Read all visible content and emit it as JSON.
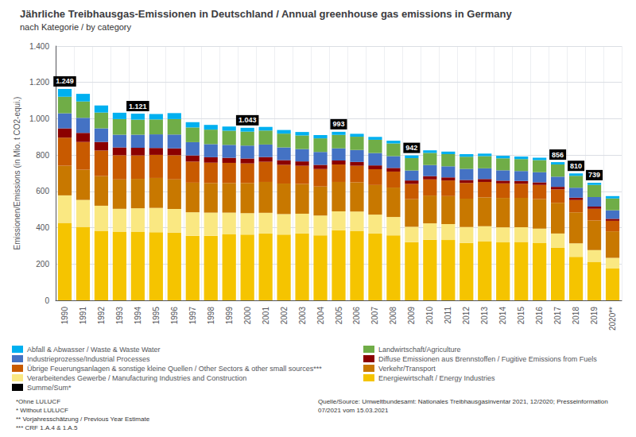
{
  "chart_data": {
    "type": "bar",
    "title": "Jährliche Treibhausgas-Emissionen in Deutschland / Annual greenhouse gas emissions in Germany",
    "subtitle": "nach Kategorie / by category",
    "y_label": "Emissionen/Emissions (in Mio. t CO2-equi.)",
    "categories": [
      "1990",
      "1991",
      "1992",
      "1993",
      "1994",
      "1995",
      "1996",
      "1997",
      "1998",
      "1999",
      "2000",
      "2001",
      "2002",
      "2003",
      "2004",
      "2005",
      "2006",
      "2007",
      "2008",
      "2009",
      "2010",
      "2011",
      "2012",
      "2013",
      "2014",
      "2015",
      "2016",
      "2017",
      "2018",
      "2019",
      "2020**"
    ],
    "stacked": true,
    "series": [
      {
        "name": "Energiewirtschaft / Energy Industries",
        "color": "#F5C400",
        "values": [
          427,
          405,
          383,
          378,
          378,
          375,
          373,
          356,
          356,
          363,
          362,
          368,
          362,
          368,
          358,
          386,
          383,
          368,
          358,
          321,
          334,
          332,
          316,
          324,
          319,
          322,
          315,
          289,
          240,
          212,
          175
        ]
      },
      {
        "name": "Verarbeitendes Gewerbe / Manufacturing Industries and Construction",
        "color": "#FAE882",
        "values": [
          151,
          148,
          138,
          126,
          129,
          134,
          130,
          129,
          127,
          120,
          118,
          114,
          113,
          109,
          109,
          104,
          106,
          104,
          101,
          84,
          90,
          88,
          88,
          84,
          83,
          80,
          80,
          79,
          74,
          65,
          59
        ]
      },
      {
        "name": "Verkehr/Transport",
        "color": "#C87800",
        "values": [
          163,
          166,
          163,
          162,
          162,
          165,
          163,
          163,
          163,
          163,
          166,
          170,
          168,
          164,
          160,
          162,
          161,
          163,
          162,
          152,
          153,
          154,
          156,
          159,
          162,
          162,
          163,
          169,
          170,
          163,
          146
        ]
      },
      {
        "name": "Übrige Feuerungsanlagen & sonstige kleine Quellen / Other Sectors & other small sources***",
        "color": "#C85A00",
        "values": [
          155,
          153,
          141,
          133,
          129,
          127,
          133,
          116,
          112,
          111,
          108,
          111,
          103,
          100,
          96,
          96,
          91,
          87,
          88,
          84,
          89,
          86,
          86,
          85,
          80,
          78,
          78,
          74,
          68,
          64,
          58
        ]
      },
      {
        "name": "Diffuse Emissionen aus Brennstoffen / Fugitive Emissions from Fuels",
        "color": "#8B0000",
        "values": [
          51,
          50,
          47,
          43,
          42,
          38,
          38,
          34,
          30,
          28,
          27,
          26,
          26,
          24,
          23,
          22,
          21,
          21,
          20,
          19,
          18,
          17,
          17,
          16,
          15,
          15,
          14,
          14,
          13,
          12,
          11
        ]
      },
      {
        "name": "Industrieprozesse/Industrial Processes",
        "color": "#4472C4",
        "values": [
          83,
          83,
          75,
          70,
          72,
          75,
          76,
          73,
          72,
          71,
          71,
          69,
          70,
          68,
          71,
          67,
          66,
          68,
          65,
          55,
          61,
          61,
          61,
          59,
          57,
          55,
          55,
          56,
          55,
          53,
          47
        ]
      },
      {
        "name": "Landwirtschaft/Agriculture",
        "color": "#70AD47",
        "values": [
          91,
          90,
          87,
          86,
          83,
          82,
          85,
          81,
          80,
          78,
          77,
          77,
          76,
          75,
          75,
          74,
          73,
          73,
          70,
          68,
          67,
          67,
          67,
          67,
          66,
          66,
          67,
          67,
          66,
          66,
          65
        ]
      },
      {
        "name": "Abfall & Abwasser / Waste & Waste Water",
        "color": "#00B0F0",
        "values": [
          43,
          42,
          39,
          35,
          33,
          30,
          33,
          29,
          26,
          23,
          21,
          20,
          20,
          19,
          18,
          17,
          16,
          16,
          15,
          15,
          14,
          14,
          14,
          14,
          14,
          14,
          13,
          13,
          13,
          13,
          13
        ]
      }
    ],
    "ylim": [
      0,
      1400
    ],
    "yticks": [
      0,
      200,
      400,
      600,
      800,
      {
        "value": 1000,
        "label": "1.000"
      },
      {
        "value": 1200,
        "label": "1.200"
      },
      {
        "value": 1400,
        "label": "1.400"
      }
    ],
    "grid": true,
    "legend": "bottom",
    "legend_columns": [
      [
        "Abfall & Abwasser / Waste & Waste Water",
        "Industrieprozesse/Industrial Processes",
        "Übrige Feuerungsanlagen & sonstige kleine Quellen / Other Sectors & other small sources***",
        "Verarbeitendes Gewerbe / Manufacturing Industries and Construction",
        "Summe/Sum*"
      ],
      [
        "Landwirtschaft/Agriculture",
        "Diffuse Emissionen aus Brennstoffen / Fugitive Emissions from Fuels",
        "Verkehr/Transport",
        "Energiewirtschaft / Energy Industries"
      ]
    ],
    "annotations": {
      "name": "Summe/Sum*",
      "color": "#000000",
      "items": [
        {
          "x": "1990",
          "text": "1.249"
        },
        {
          "x": "1994",
          "text": "1.121"
        },
        {
          "x": "2000",
          "text": "1.043"
        },
        {
          "x": "2005",
          "text": "993"
        },
        {
          "x": "2009",
          "text": "942"
        },
        {
          "x": "2017",
          "text": "856"
        },
        {
          "x": "2018",
          "text": "810"
        },
        {
          "x": "2019",
          "text": "739"
        }
      ]
    },
    "footnotes": "*Ohne LULUCF\n* Without LULUCF\n** Vorjahresschätzung / Previous Year Estimate\n*** CRF 1.A.4 & 1.A.5",
    "source": "Quelle/Source: Umweltbundesamt: Nationales Treibhausgasinventar 2021, 12/2020; Presseinformation\n07/2021 vom 15.03.2021"
  }
}
